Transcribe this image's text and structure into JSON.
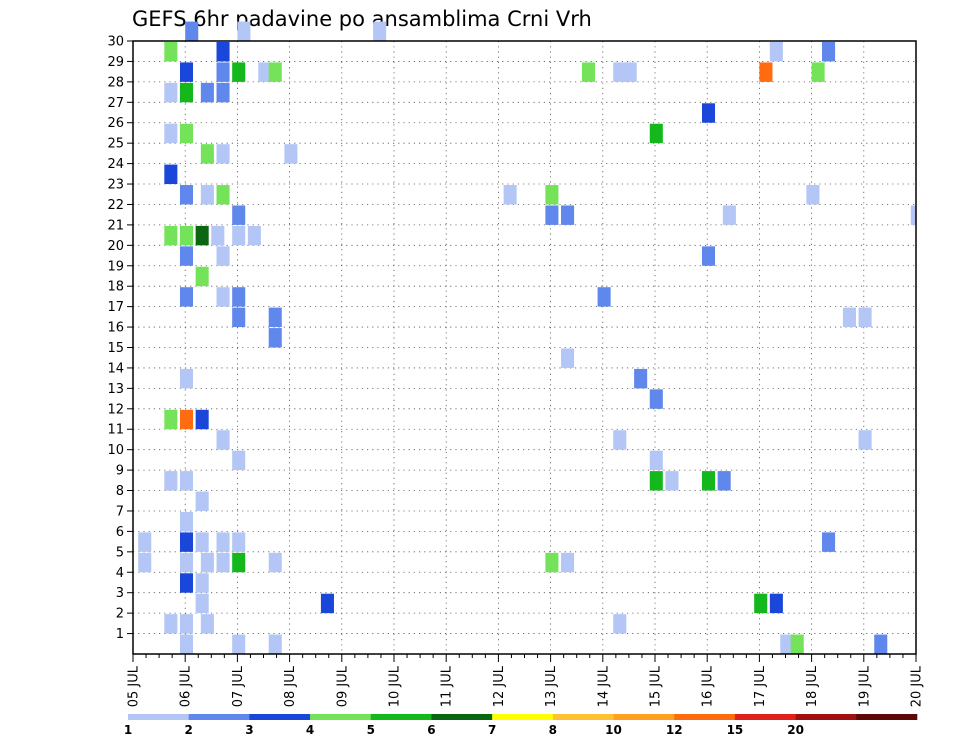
{
  "chart_data": {
    "type": "heatmap",
    "title": "GEFS 6hr padavine po ansamblima Crni Vrh",
    "xlabel": "",
    "ylabel": "",
    "x_tick_labels": [
      "05 JUL",
      "06 JUL",
      "07 JUL",
      "08 JUL",
      "09 JUL",
      "10 JUL",
      "11 JUL",
      "12 JUL",
      "13 JUL",
      "14 JUL",
      "15 JUL",
      "16 JUL",
      "17 JUL",
      "18 JUL",
      "19 JUL",
      "20 JUL"
    ],
    "xlim_days": [
      5,
      20
    ],
    "time_step_hours": 6,
    "y_tick_labels": [
      "1",
      "2",
      "3",
      "4",
      "5",
      "6",
      "7",
      "8",
      "9",
      "10",
      "11",
      "12",
      "13",
      "14",
      "15",
      "16",
      "17",
      "18",
      "19",
      "20",
      "21",
      "22",
      "23",
      "24",
      "25",
      "26",
      "27",
      "28",
      "29",
      "30"
    ],
    "ylim": [
      0,
      30
    ],
    "grid": true,
    "colorbar": {
      "tick_labels": [
        "1",
        "2",
        "3",
        "4",
        "5",
        "6",
        "7",
        "8",
        "10",
        "12",
        "15",
        "20"
      ],
      "colors": [
        "#b3c6f5",
        "#5f87ec",
        "#1a47d9",
        "#74e35a",
        "#14b81c",
        "#0a6612",
        "#ffff00",
        "#ffc132",
        "#ffa020",
        "#ff6c10",
        "#e0201a",
        "#a01010",
        "#5c0808"
      ]
    },
    "cells": [
      [
        30,
        1.0,
        2
      ],
      [
        30,
        2.0,
        1
      ],
      [
        30,
        4.6,
        1
      ],
      [
        29,
        0.6,
        4
      ],
      [
        29,
        1.6,
        3
      ],
      [
        29,
        12.2,
        1
      ],
      [
        29,
        13.2,
        2
      ],
      [
        28,
        0.9,
        3
      ],
      [
        28,
        1.6,
        2
      ],
      [
        28,
        1.9,
        5
      ],
      [
        28,
        2.4,
        1
      ],
      [
        28,
        2.6,
        4
      ],
      [
        28,
        8.6,
        4
      ],
      [
        28,
        9.2,
        1
      ],
      [
        28,
        9.4,
        1
      ],
      [
        28,
        12.0,
        10
      ],
      [
        28,
        13.0,
        4
      ],
      [
        27,
        0.6,
        1
      ],
      [
        27,
        0.9,
        5
      ],
      [
        27,
        1.3,
        2
      ],
      [
        27,
        1.6,
        2
      ],
      [
        26,
        10.9,
        3
      ],
      [
        25,
        0.6,
        1
      ],
      [
        25,
        0.9,
        4
      ],
      [
        25,
        9.9,
        5
      ],
      [
        24,
        1.3,
        4
      ],
      [
        24,
        1.6,
        1
      ],
      [
        24,
        2.9,
        1
      ],
      [
        23,
        0.6,
        3
      ],
      [
        22,
        0.9,
        2
      ],
      [
        22,
        1.3,
        1
      ],
      [
        22,
        1.6,
        4
      ],
      [
        22,
        7.1,
        1
      ],
      [
        22,
        7.9,
        4
      ],
      [
        22,
        12.9,
        1
      ],
      [
        21,
        1.9,
        2
      ],
      [
        21,
        7.9,
        2
      ],
      [
        21,
        8.2,
        2
      ],
      [
        21,
        11.3,
        1
      ],
      [
        21,
        14.9,
        1
      ],
      [
        20,
        0.6,
        4
      ],
      [
        20,
        0.9,
        4
      ],
      [
        20,
        1.2,
        6
      ],
      [
        20,
        1.5,
        1
      ],
      [
        20,
        1.9,
        1
      ],
      [
        20,
        2.2,
        1
      ],
      [
        19,
        0.9,
        2
      ],
      [
        19,
        1.6,
        1
      ],
      [
        19,
        10.9,
        2
      ],
      [
        18,
        1.2,
        4
      ],
      [
        17,
        0.9,
        2
      ],
      [
        17,
        1.6,
        1
      ],
      [
        17,
        1.9,
        2
      ],
      [
        17,
        8.9,
        2
      ],
      [
        16,
        1.9,
        2
      ],
      [
        16,
        2.6,
        2
      ],
      [
        16,
        13.6,
        1
      ],
      [
        16,
        13.9,
        1
      ],
      [
        15,
        2.6,
        2
      ],
      [
        14,
        8.2,
        1
      ],
      [
        13,
        0.9,
        1
      ],
      [
        13,
        9.6,
        2
      ],
      [
        12,
        9.9,
        2
      ],
      [
        11,
        0.6,
        4
      ],
      [
        11,
        0.9,
        10
      ],
      [
        11,
        1.2,
        3
      ],
      [
        10,
        1.6,
        1
      ],
      [
        10,
        9.2,
        1
      ],
      [
        10,
        13.9,
        1
      ],
      [
        9,
        1.9,
        1
      ],
      [
        9,
        9.9,
        1
      ],
      [
        8,
        0.6,
        1
      ],
      [
        8,
        0.9,
        1
      ],
      [
        8,
        9.9,
        5
      ],
      [
        8,
        10.2,
        1
      ],
      [
        8,
        10.9,
        5
      ],
      [
        8,
        11.2,
        2
      ],
      [
        7,
        1.2,
        1
      ],
      [
        6,
        0.9,
        1
      ],
      [
        5,
        0.1,
        1
      ],
      [
        5,
        0.9,
        3
      ],
      [
        5,
        1.2,
        1
      ],
      [
        5,
        1.6,
        1
      ],
      [
        5,
        1.9,
        1
      ],
      [
        5,
        13.2,
        2
      ],
      [
        4,
        0.1,
        1
      ],
      [
        4,
        0.9,
        1
      ],
      [
        4,
        1.3,
        1
      ],
      [
        4,
        1.6,
        1
      ],
      [
        4,
        1.9,
        5
      ],
      [
        4,
        2.6,
        1
      ],
      [
        4,
        7.9,
        4
      ],
      [
        4,
        8.2,
        1
      ],
      [
        3,
        0.9,
        3
      ],
      [
        3,
        1.2,
        1
      ],
      [
        2,
        1.2,
        1
      ],
      [
        2,
        3.6,
        3
      ],
      [
        2,
        11.9,
        5
      ],
      [
        2,
        12.2,
        3
      ],
      [
        1,
        0.6,
        1
      ],
      [
        1,
        0.9,
        1
      ],
      [
        1,
        1.3,
        1
      ],
      [
        1,
        9.2,
        1
      ],
      [
        0,
        0.9,
        1
      ],
      [
        0,
        1.9,
        1
      ],
      [
        0,
        2.6,
        1
      ],
      [
        0,
        12.4,
        1
      ],
      [
        0,
        12.6,
        4
      ],
      [
        0,
        14.2,
        2
      ]
    ]
  }
}
